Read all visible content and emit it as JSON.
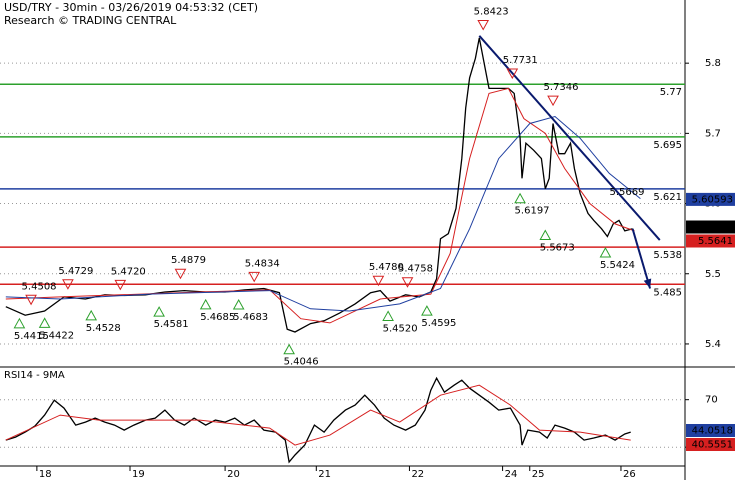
{
  "header": {
    "title": "USD/TRY - 30min - 03/26/2019 04:53:32 (CET)",
    "subtitle": "Research © TRADING CENTRAL"
  },
  "chart_data": [
    {
      "type": "line",
      "xlim": [
        -19,
        334
      ],
      "ylim": [
        5.37,
        5.89
      ],
      "yticks": [
        5.4,
        5.5,
        5.6,
        5.7,
        5.8
      ],
      "grid": true,
      "series": [
        {
          "color": "#000000",
          "x": [
            -16,
            -6,
            4,
            14,
            25,
            35,
            45,
            56,
            66,
            76,
            87,
            97,
            107,
            117,
            125,
            129,
            133,
            141,
            148,
            156,
            164,
            172,
            177,
            182,
            190,
            197,
            203,
            206,
            208,
            212,
            216,
            219,
            221,
            223,
            226,
            228,
            231,
            233,
            238,
            243,
            246,
            249,
            250,
            252,
            256,
            260,
            262,
            264,
            266,
            269,
            272,
            275,
            277,
            280,
            284,
            287,
            291,
            294,
            297,
            300,
            303,
            307
          ],
          "values": [
            5.453,
            5.441,
            5.447,
            5.467,
            5.464,
            5.47,
            5.469,
            5.47,
            5.474,
            5.476,
            5.474,
            5.474,
            5.477,
            5.479,
            5.473,
            5.421,
            5.417,
            5.429,
            5.433,
            5.444,
            5.457,
            5.473,
            5.476,
            5.461,
            5.47,
            5.467,
            5.474,
            5.493,
            5.55,
            5.557,
            5.593,
            5.664,
            5.736,
            5.779,
            5.807,
            5.836,
            5.793,
            5.764,
            5.764,
            5.764,
            5.757,
            5.693,
            5.636,
            5.686,
            5.676,
            5.664,
            5.621,
            5.636,
            5.714,
            5.671,
            5.671,
            5.686,
            5.65,
            5.614,
            5.586,
            5.576,
            5.564,
            5.553,
            5.571,
            5.576,
            5.561,
            5.564
          ]
        },
        {
          "color": "#d62020",
          "x": [
            -16,
            12,
            43,
            84,
            120,
            136,
            151,
            177,
            203,
            213,
            223,
            233,
            243,
            251,
            262,
            272,
            285,
            298,
            308
          ],
          "values": [
            5.464,
            5.467,
            5.47,
            5.474,
            5.477,
            5.436,
            5.43,
            5.464,
            5.471,
            5.529,
            5.664,
            5.757,
            5.764,
            5.721,
            5.7,
            5.65,
            5.6,
            5.571,
            5.561
          ]
        },
        {
          "color": "#1f3fa0",
          "x": [
            -16,
            12,
            58,
            120,
            141,
            161,
            187,
            208,
            223,
            238,
            254,
            267,
            280,
            295,
            311
          ],
          "values": [
            5.467,
            5.464,
            5.471,
            5.476,
            5.45,
            5.447,
            5.457,
            5.479,
            5.564,
            5.664,
            5.714,
            5.724,
            5.693,
            5.643,
            5.607
          ]
        }
      ],
      "levels": [
        {
          "value": 5.77,
          "color": "#2ca02c"
        },
        {
          "value": 5.695,
          "color": "#2ca02c"
        },
        {
          "value": 5.621,
          "color": "#1f3fa0"
        },
        {
          "value": 5.538,
          "color": "#d62020"
        },
        {
          "value": 5.485,
          "color": "#d62020"
        }
      ],
      "trendline": {
        "x": [
          228,
          321
        ],
        "values": [
          5.839,
          5.548
        ],
        "color": "#0a1a6e"
      },
      "arrow": {
        "x": [
          307,
          316
        ],
        "values": [
          5.564,
          5.479
        ],
        "color": "#0a1a6e"
      },
      "annotations": [
        {
          "x": -9,
          "value": 5.4415,
          "kind": "low"
        },
        {
          "x": 4,
          "value": 5.4422,
          "kind": "low"
        },
        {
          "x": 28,
          "value": 5.4528,
          "kind": "low"
        },
        {
          "x": 63,
          "value": 5.4581,
          "kind": "low"
        },
        {
          "x": 87,
          "value": 5.4685,
          "kind": "low"
        },
        {
          "x": 104,
          "value": 5.4683,
          "kind": "low"
        },
        {
          "x": 130,
          "value": 5.4046,
          "kind": "low"
        },
        {
          "x": 181,
          "value": 5.452,
          "label": "5.4520",
          "kind": "low"
        },
        {
          "x": 201,
          "value": 5.4595,
          "kind": "low"
        },
        {
          "x": 249,
          "value": 5.6197,
          "kind": "low"
        },
        {
          "x": 262,
          "value": 5.5673,
          "kind": "low"
        },
        {
          "x": 293,
          "value": 5.5424,
          "kind": "low"
        },
        {
          "x": -3,
          "value": 5.4508,
          "kind": "high"
        },
        {
          "x": 16,
          "value": 5.4729,
          "kind": "high"
        },
        {
          "x": 43,
          "value": 5.472,
          "label": "5.4720",
          "kind": "high"
        },
        {
          "x": 74,
          "value": 5.4879,
          "kind": "high"
        },
        {
          "x": 112,
          "value": 5.4834,
          "kind": "high"
        },
        {
          "x": 176,
          "value": 5.478,
          "label": "5.4780",
          "kind": "high"
        },
        {
          "x": 191,
          "value": 5.4758,
          "kind": "high"
        },
        {
          "x": 230,
          "value": 5.8423,
          "kind": "high"
        },
        {
          "x": 245,
          "value": 5.7731,
          "kind": "high"
        },
        {
          "x": 266,
          "value": 5.7346,
          "kind": "high"
        },
        {
          "x": 300,
          "value": 5.5669,
          "kind": "text"
        }
      ],
      "price_tags": [
        {
          "value": 5.60593,
          "color": "#1f3fa0"
        },
        {
          "value": 5.5666,
          "color": "#000000"
        },
        {
          "value": 5.5641,
          "color": "#d62020"
        }
      ]
    },
    {
      "type": "line",
      "title": "RSI14 - 9MA",
      "xlim": [
        -19,
        334
      ],
      "ylim": [
        15,
        95
      ],
      "yticks": [
        30,
        70
      ],
      "grid": true,
      "xticks": [
        {
          "value": 0,
          "label": "18"
        },
        {
          "value": 48,
          "label": "19"
        },
        {
          "value": 97,
          "label": "20"
        },
        {
          "value": 144,
          "label": "21"
        },
        {
          "value": 192,
          "label": "22"
        },
        {
          "value": 240,
          "label": "24"
        },
        {
          "value": 254,
          "label": "25"
        },
        {
          "value": 301,
          "label": "26"
        }
      ],
      "series": [
        {
          "color": "#000000",
          "x": [
            -16,
            -11,
            -6,
            -1,
            4,
            9,
            14,
            20,
            25,
            30,
            35,
            40,
            45,
            50,
            56,
            61,
            66,
            71,
            76,
            81,
            87,
            92,
            97,
            102,
            107,
            112,
            117,
            123,
            128,
            130,
            133,
            138,
            143,
            148,
            153,
            159,
            164,
            169,
            174,
            179,
            184,
            190,
            195,
            200,
            203,
            206,
            210,
            215,
            219,
            223,
            228,
            233,
            238,
            244,
            249,
            250,
            253,
            259,
            263,
            267,
            272,
            277,
            282,
            287,
            293,
            298,
            303,
            306
          ],
          "values": [
            36.0,
            38.5,
            42.7,
            47.8,
            57.0,
            69.6,
            62.9,
            48.6,
            51.1,
            54.5,
            51.1,
            48.6,
            44.4,
            48.6,
            52.8,
            54.5,
            61.2,
            52.8,
            48.6,
            54.5,
            48.6,
            52.8,
            51.1,
            54.5,
            48.6,
            52.8,
            44.4,
            42.7,
            36.0,
            17.5,
            23.4,
            31.8,
            48.6,
            42.7,
            52.8,
            61.2,
            65.4,
            73.8,
            65.4,
            54.5,
            48.6,
            44.4,
            48.6,
            61.2,
            78.0,
            88.1,
            76.3,
            82.2,
            86.4,
            79.7,
            73.8,
            67.9,
            61.2,
            62.9,
            48.6,
            31.8,
            44.4,
            42.7,
            37.7,
            48.6,
            46.1,
            42.7,
            36.0,
            37.7,
            40.2,
            36.0,
            41.1,
            42.7
          ]
        },
        {
          "color": "#d62020",
          "x": [
            -16,
            12,
            32,
            84,
            120,
            133,
            151,
            172,
            187,
            208,
            228,
            244,
            259,
            280,
            306
          ],
          "values": [
            36.0,
            57.0,
            52.8,
            52.8,
            46.1,
            31.8,
            40.2,
            61.2,
            51.1,
            73.8,
            82.2,
            65.4,
            44.4,
            42.7,
            36.0
          ]
        }
      ],
      "price_tags": [
        {
          "value": 44.0518,
          "color": "#1f3fa0"
        },
        {
          "value": 40.5551,
          "color": "#d62020"
        }
      ]
    }
  ]
}
